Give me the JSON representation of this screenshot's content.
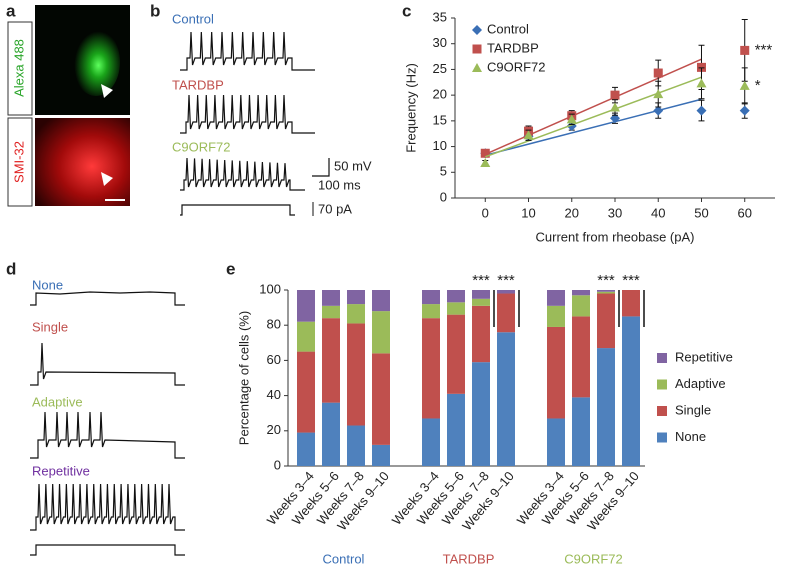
{
  "panel_labels": [
    "a",
    "b",
    "c",
    "d",
    "e"
  ],
  "panel_a": {
    "labels": [
      "Alexa 488",
      "SMI-32"
    ]
  },
  "panel_b": {
    "traces": [
      "Control",
      "TARDBP",
      "C9ORF72"
    ],
    "scale_bars": [
      "50 mV",
      "100 ms",
      "70 pA"
    ]
  },
  "panel_d": {
    "traces": [
      "None",
      "Single",
      "Adaptive",
      "Repetitive"
    ]
  },
  "chart_data": [
    {
      "type": "line",
      "xlabel": "Current from rheobase (pA)",
      "ylabel": "Frequency (Hz)",
      "x": [
        0,
        10,
        20,
        30,
        40,
        50,
        60
      ],
      "xlim": [
        -7,
        67
      ],
      "xticks": [
        0,
        10,
        20,
        30,
        40,
        50,
        60
      ],
      "ylim": [
        0,
        35
      ],
      "yticks": [
        0,
        5,
        10,
        15,
        20,
        25,
        30,
        35
      ],
      "legend": "top-left",
      "fit_x": [
        0,
        50
      ],
      "series": [
        {
          "name": "Control",
          "color": "#3a6fb5",
          "marker": "diamond",
          "values": [
            8.7,
            12,
            14,
            15.5,
            17,
            17,
            17
          ],
          "errors": [
            0.5,
            0.8,
            0.8,
            1,
            1.5,
            2,
            1.5
          ],
          "fit": [
            8.3,
            19.2
          ]
        },
        {
          "name": "TARDBP",
          "color": "#c0504d",
          "marker": "square",
          "values": [
            8.7,
            13,
            16,
            20,
            24.3,
            25.4,
            28.7
          ],
          "errors": [
            0.7,
            1,
            1,
            1.5,
            2.5,
            4.3,
            6
          ],
          "fit": [
            8.5,
            27
          ]
        },
        {
          "name": "C9ORF72",
          "color": "#9bbb59",
          "marker": "triangle",
          "values": [
            6.8,
            12.2,
            15.3,
            17.6,
            20.2,
            22.3,
            21.8
          ],
          "errors": [
            0.5,
            1,
            1,
            1.5,
            2.5,
            3,
            3.5
          ],
          "fit": [
            8,
            23.5
          ]
        }
      ],
      "annotations": [
        {
          "text": "***",
          "series": "TARDBP"
        },
        {
          "text": "*",
          "series": "C9ORF72"
        }
      ]
    },
    {
      "type": "stacked-bar",
      "ylabel": "Percentage of cells (%)",
      "ylim": [
        0,
        100
      ],
      "yticks": [
        0,
        20,
        40,
        60,
        80,
        100
      ],
      "legend": "right",
      "categories": [
        "Weeks 3–4",
        "Weeks 5–6",
        "Weeks 7–8",
        "Weeks 9–10",
        "Weeks 3–4",
        "Weeks 5–6",
        "Weeks 7–8",
        "Weeks 9–10",
        "Weeks 3–4",
        "Weeks 5–6",
        "Weeks 7–8",
        "Weeks 9–10"
      ],
      "groups": [
        {
          "name": "Control",
          "color": "#3a6fb5"
        },
        {
          "name": "TARDBP",
          "color": "#c0504d"
        },
        {
          "name": "C9ORF72",
          "color": "#9bbb59"
        }
      ],
      "series": [
        {
          "name": "None",
          "color": "#4f81bd",
          "values": [
            19,
            36,
            23,
            12,
            27,
            41,
            59,
            76,
            27,
            39,
            67,
            85
          ]
        },
        {
          "name": "Single",
          "color": "#c0504d",
          "values": [
            46,
            48,
            58,
            52,
            57,
            45,
            32,
            22,
            52,
            46,
            31,
            15
          ]
        },
        {
          "name": "Adaptive",
          "color": "#9bbb59",
          "values": [
            17,
            7,
            11,
            24,
            8,
            7,
            4,
            0,
            12,
            12,
            1,
            0
          ]
        },
        {
          "name": "Repetitive",
          "color": "#8064a2",
          "values": [
            18,
            9,
            8,
            12,
            8,
            7,
            5,
            2,
            9,
            3,
            1,
            0
          ]
        }
      ],
      "annotations": [
        "***",
        "***",
        "***",
        "***"
      ]
    }
  ]
}
